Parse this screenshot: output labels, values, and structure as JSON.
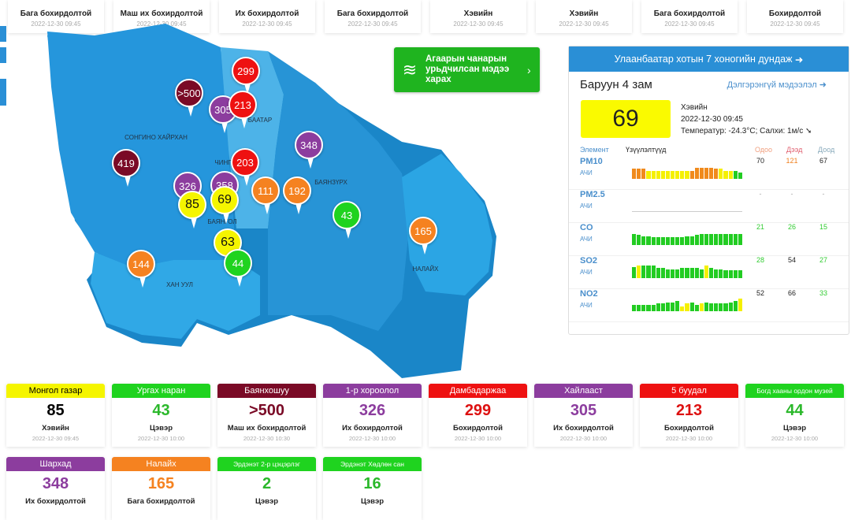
{
  "top_cards": [
    {
      "status": "Бага бохирдолтой",
      "time": "2022-12-30 09:45"
    },
    {
      "status": "Маш их бохирдолтой",
      "time": "2022-12-30 09:45"
    },
    {
      "status": "Их бохирдолтой",
      "time": "2022-12-30 09:45"
    },
    {
      "status": "Бага бохирдолтой",
      "time": "2022-12-30 09:45"
    },
    {
      "status": "Хэвийн",
      "time": "2022-12-30 09:45"
    },
    {
      "status": "Хэвийн",
      "time": "2022-12-30 09:45"
    },
    {
      "status": "Бага бохирдолтой",
      "time": "2022-12-30 09:45"
    },
    {
      "status": "Бохирдолтой",
      "time": "2022-12-30 09:45"
    }
  ],
  "map": {
    "districts": [
      "СОНГИНО ХАЙРХАН",
      "БААТАР",
      "ЧИНГ",
      "БАЯНЗҮРХ",
      "БАЯНГОЛ",
      "ХАН УУЛ",
      "НАЛАЙХ"
    ],
    "markers": [
      ">500",
      "299",
      "305",
      "213",
      "419",
      "348",
      "203",
      "326",
      "358",
      "85",
      "69",
      "111",
      "192",
      "43",
      "165",
      "63",
      "144",
      "44"
    ]
  },
  "banner": {
    "text": "Агаарын чанарын урьдчилсан мэдээ харах",
    "icon": "wind-icon"
  },
  "panel": {
    "header": "Улаанбаатар хотын 7 хоногийн дундаж",
    "station": "Баруун 4 зам",
    "more": "Дэлгэрэнгүй мэдээлэл",
    "aqi": "69",
    "status": "Хэвийн",
    "time": "2022-12-30 09:45",
    "weather": "Температур: -24.3°C; Салхи: 1м/с",
    "cols": {
      "element": "Элемент",
      "chart": "Үзүүлэлтүүд",
      "now": "Одоо",
      "max": "Дээд",
      "min": "Доод"
    },
    "rows": [
      {
        "name": "PM10",
        "unit": "АЧИ",
        "now": "70",
        "max": "121",
        "min": "67",
        "colors": [
          "#222",
          "#f08020",
          "#222"
        ],
        "bars": "ooo yyyyyyyyyoooooo yyy",
        "h": [
          0.8,
          0.8,
          0.8,
          0.6,
          0.6,
          0.6,
          0.6,
          0.6,
          0.6,
          0.6,
          0.6,
          0.6,
          0.6,
          0.9,
          0.9,
          0.9,
          0.9,
          0.8,
          0.8,
          0.6,
          0.6,
          0.6,
          0.5
        ]
      },
      {
        "name": "PM2.5",
        "unit": "АЧИ",
        "now": "-",
        "max": "-",
        "min": "-",
        "colors": [
          "#aaa",
          "#aaa",
          "#aaa"
        ],
        "bars": "",
        "h": []
      },
      {
        "name": "CO",
        "unit": "АЧИ",
        "now": "21",
        "max": "26",
        "min": "15",
        "colors": [
          "#3c3",
          "#3c3",
          "#3c3"
        ],
        "bars": "ggggggggggggggggggggggg",
        "h": [
          0.9,
          0.8,
          0.7,
          0.7,
          0.6,
          0.6,
          0.6,
          0.6,
          0.6,
          0.6,
          0.6,
          0.7,
          0.7,
          0.8,
          0.9,
          0.9,
          0.9,
          0.9,
          0.9,
          0.9,
          0.9,
          0.9,
          0.9
        ]
      },
      {
        "name": "SO2",
        "unit": "АЧИ",
        "now": "28",
        "max": "54",
        "min": "27",
        "colors": [
          "#3c3",
          "#222",
          "#3c3"
        ],
        "bars": "gygggggggggggggyggggggg",
        "h": [
          0.9,
          1,
          1,
          1,
          1,
          0.8,
          0.8,
          0.7,
          0.7,
          0.7,
          0.8,
          0.8,
          0.8,
          0.8,
          0.7,
          1,
          0.8,
          0.7,
          0.7,
          0.6,
          0.6,
          0.6,
          0.6
        ]
      },
      {
        "name": "NO2",
        "unit": "АЧИ",
        "now": "52",
        "max": "66",
        "min": "33",
        "colors": [
          "#222",
          "#222",
          "#3c3"
        ],
        "bars": "ggggggggggyyggygggggggy",
        "h": [
          0.5,
          0.5,
          0.5,
          0.5,
          0.5,
          0.6,
          0.6,
          0.7,
          0.7,
          0.8,
          0.4,
          0.6,
          0.7,
          0.5,
          0.6,
          0.7,
          0.6,
          0.6,
          0.6,
          0.6,
          0.7,
          0.8,
          1
        ]
      }
    ]
  },
  "bottom_cards": [
    {
      "name": "Монгол газар",
      "value": "85",
      "status": "Хэвийн",
      "time": "2022-12-30 09:45",
      "color": "#f5f500",
      "text": "#000"
    },
    {
      "name": "Ургах наран",
      "value": "43",
      "status": "Цэвэр",
      "time": "2022-12-30 10:00",
      "color": "#1fd31f",
      "text": "#2bb82b"
    },
    {
      "name": "Баянхошуу",
      "value": ">500",
      "status": "Маш их бохирдолтой",
      "time": "2022-12-30 10:30",
      "color": "#7a0a26",
      "text": "#7a0a26"
    },
    {
      "name": "1-р хороолол",
      "value": "326",
      "status": "Их бохирдолтой",
      "time": "2022-12-30 10:00",
      "color": "#8c3d9e",
      "text": "#8c3d9e"
    },
    {
      "name": "Дамбадаржаа",
      "value": "299",
      "status": "Бохирдолтой",
      "time": "2022-12-30 10:00",
      "color": "#ee1111",
      "text": "#dd1111"
    },
    {
      "name": "Хайлааст",
      "value": "305",
      "status": "Их бохирдолтой",
      "time": "2022-12-30 10:00",
      "color": "#8c3d9e",
      "text": "#8c3d9e"
    },
    {
      "name": "5 буудал",
      "value": "213",
      "status": "Бохирдолтой",
      "time": "2022-12-30 10:00",
      "color": "#ee1111",
      "text": "#dd1111"
    },
    {
      "name": "Богд хааны ордон музей",
      "value": "44",
      "status": "Цэвэр",
      "time": "2022-12-30 10:00",
      "color": "#1fd31f",
      "text": "#2bb82b"
    },
    {
      "name": "Шархад",
      "value": "348",
      "status": "Их бохирдолтой",
      "time": "",
      "color": "#8c3d9e",
      "text": "#8c3d9e"
    },
    {
      "name": "Налайх",
      "value": "165",
      "status": "Бага бохирдолтой",
      "time": "",
      "color": "#f58220",
      "text": "#f58220"
    },
    {
      "name": "Эрдэнэт 2-р цэцэрлэг",
      "value": "2",
      "status": "Цэвэр",
      "time": "",
      "color": "#1fd31f",
      "text": "#2bb82b"
    },
    {
      "name": "Эрдэнэт Хөдлөн сан",
      "value": "16",
      "status": "Цэвэр",
      "time": "",
      "color": "#1fd31f",
      "text": "#2bb82b"
    }
  ]
}
